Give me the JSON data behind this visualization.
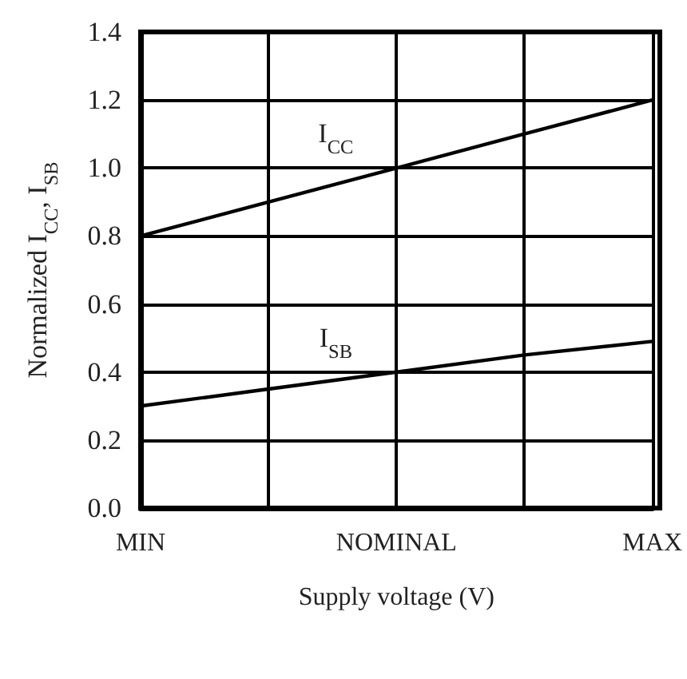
{
  "chart_data": {
    "type": "line",
    "xlabel": "Supply voltage (V)",
    "ylabel": "Normalized I$_{CC}$, I$_{SB}$",
    "categories": [
      "MIN",
      null,
      "NOMINAL",
      null,
      "MAX"
    ],
    "series": [
      {
        "name": "I$_{CC}$",
        "color": "#000000",
        "values": [
          0.8,
          0.9,
          1.0,
          1.1,
          1.2
        ]
      },
      {
        "name": "I$_{SB}$",
        "color": "#000000",
        "values": [
          0.3,
          0.35,
          0.4,
          0.45,
          0.49
        ]
      }
    ],
    "ylim": [
      0,
      1.4
    ],
    "yticks": [
      {
        "value": 0,
        "label": "0.0"
      },
      {
        "value": 0.2,
        "label": "0.2"
      },
      {
        "value": 0.4,
        "label": "0.4"
      },
      {
        "value": 0.6,
        "label": "0.6"
      },
      {
        "value": 0.8,
        "label": "0.8"
      },
      {
        "value": 1.0,
        "label": "1.0"
      },
      {
        "value": 1.2,
        "label": "1.2"
      },
      {
        "value": 1.4,
        "label": "1.4"
      }
    ],
    "grid": true,
    "legend": false,
    "marker": "none",
    "line_style": "solid"
  }
}
